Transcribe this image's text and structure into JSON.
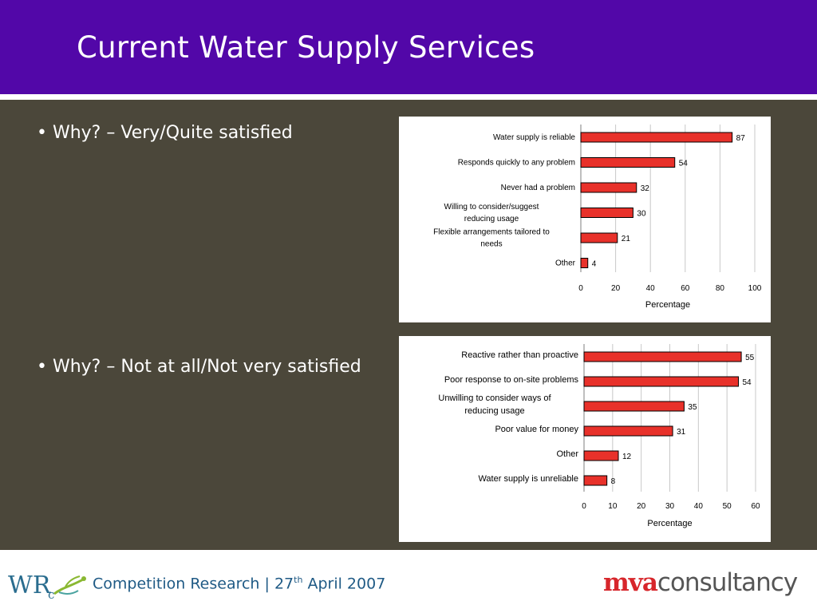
{
  "slide": {
    "title": "Current Water Supply Services",
    "bullet_1": "• Why? – Very/Quite satisfied",
    "bullet_2": "• Why? – Not at all/Not very satisfied"
  },
  "footer": {
    "text_before": "Competition Research | 27",
    "superscript": "th",
    "text_after": " April 2007",
    "logo_left": "WRc",
    "logo_right_red": "mva",
    "logo_right_grey": "consultancy"
  },
  "colors": {
    "header": "#5207a8",
    "body": "#4b473a",
    "bar": "#e8312a"
  },
  "chart_data": [
    {
      "type": "bar",
      "orientation": "horizontal",
      "categories": [
        "Water supply is reliable",
        "Responds quickly to any problem",
        "Never had a problem",
        "Willing to consider/suggest reducing usage",
        "Flexible arrangements tailored to needs",
        "Other"
      ],
      "values": [
        87,
        54,
        32,
        30,
        21,
        4
      ],
      "xlabel": "Percentage",
      "xlim": [
        0,
        100
      ],
      "xticks": [
        0,
        20,
        40,
        60,
        80,
        100
      ],
      "grid": true
    },
    {
      "type": "bar",
      "orientation": "horizontal",
      "categories": [
        "Reactive rather than proactive",
        "Poor response to on-site problems",
        "Unwilling to consider ways of reducing usage",
        "Poor value for money",
        "Other",
        "Water supply is unreliable"
      ],
      "values": [
        55,
        54,
        35,
        31,
        12,
        8
      ],
      "xlabel": "Percentage",
      "xlim": [
        0,
        60
      ],
      "xticks": [
        0,
        10,
        20,
        30,
        40,
        50,
        60
      ],
      "grid": true
    }
  ]
}
